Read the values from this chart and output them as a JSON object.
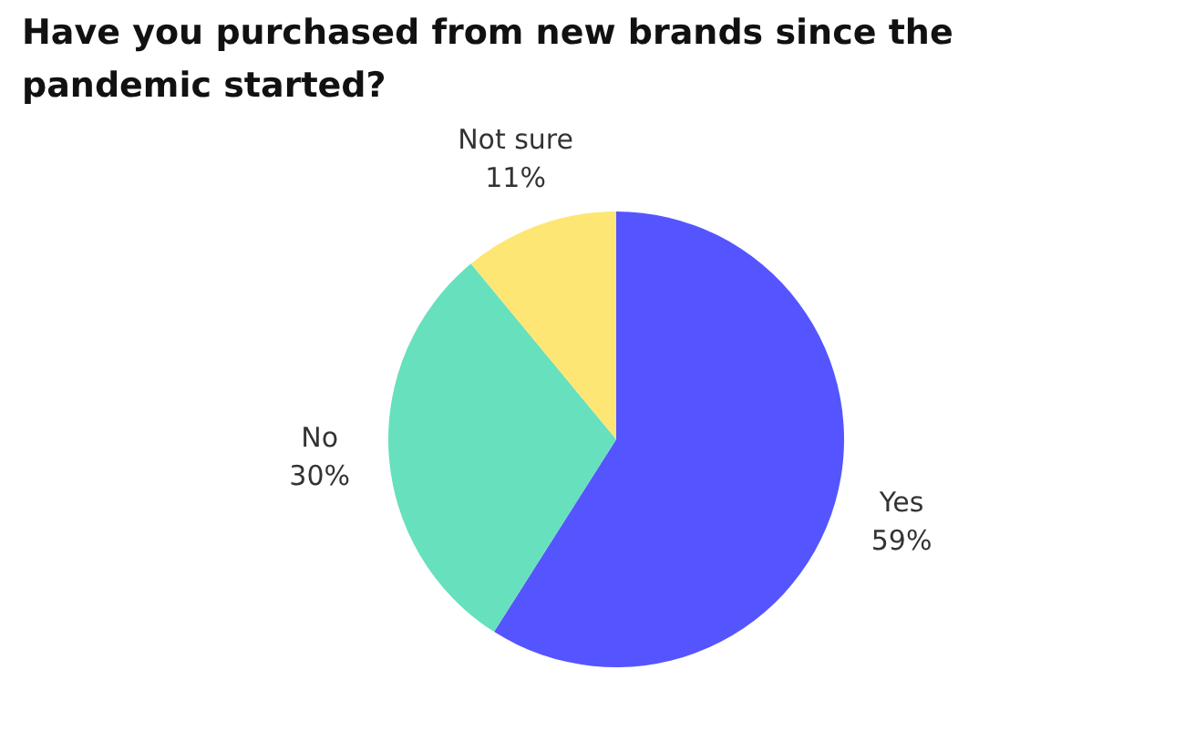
{
  "chart_data": {
    "type": "pie",
    "title": "Have you purchased from new brands since the pandemic started?",
    "categories": [
      "Yes",
      "No",
      "Not sure"
    ],
    "values": [
      59,
      30,
      11
    ],
    "colors": [
      "#5555ff",
      "#66e0bd",
      "#fde674"
    ],
    "value_labels": [
      "59%",
      "30%",
      "11%"
    ],
    "legend": false
  }
}
